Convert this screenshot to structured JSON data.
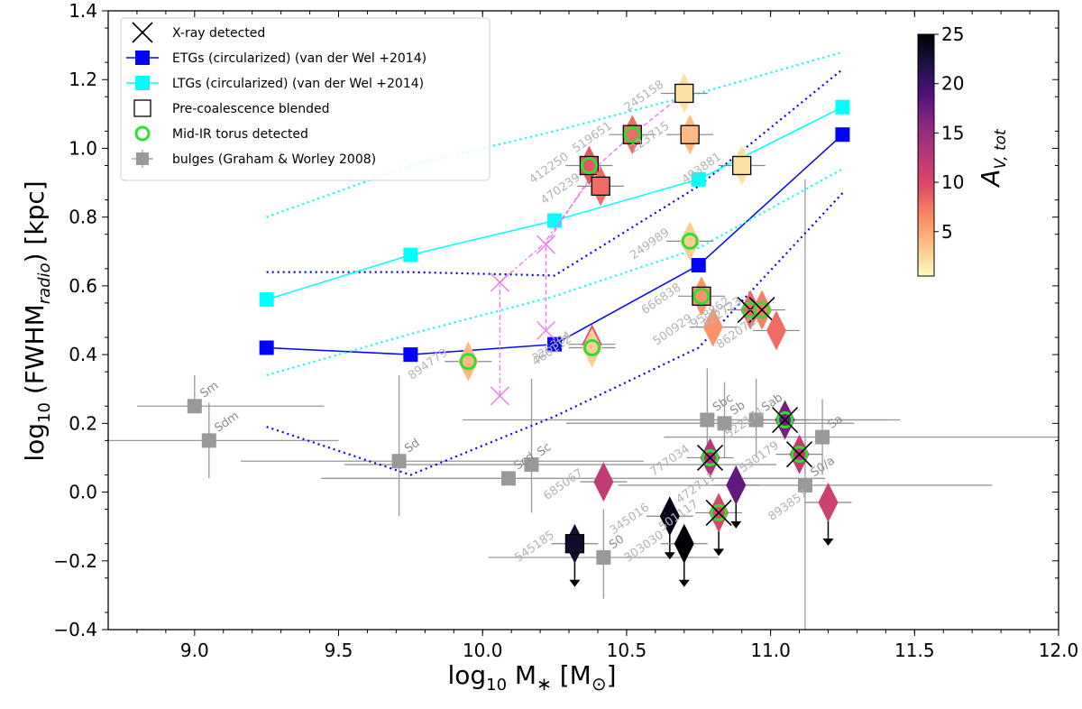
{
  "chart_data": {
    "type": "scatter",
    "title": "",
    "xlabel": "log₁₀ M∗ [M⊙]",
    "ylabel": "log₁₀ (FWHM_radio) [kpc]",
    "xlabel_parts": {
      "prefix": "log",
      "sub": "10",
      "mid": " M",
      "star": "∗",
      "bracket_open": " [M",
      "sun": "⊙",
      "bracket_close": "]"
    },
    "ylabel_parts": {
      "prefix": "log",
      "sub": "10",
      "mid": " (FWHM",
      "sub2": "radio",
      "suffix": ") [kpc]"
    },
    "xlim": [
      8.7,
      12.0
    ],
    "ylim": [
      -0.4,
      1.4
    ],
    "xticks": [
      "9.0",
      "9.5",
      "10.0",
      "10.5",
      "11.0",
      "11.5",
      "12.0"
    ],
    "xtick_values": [
      9.0,
      9.5,
      10.0,
      10.5,
      11.0,
      11.5,
      12.0
    ],
    "yticks": [
      "−0.4",
      "−0.2",
      "0.0",
      "0.2",
      "0.4",
      "0.6",
      "0.8",
      "1.0",
      "1.2",
      "1.4"
    ],
    "ytick_values": [
      -0.4,
      -0.2,
      0.0,
      0.2,
      0.4,
      0.6,
      0.8,
      1.0,
      1.2,
      1.4
    ],
    "legend": {
      "position": "top-left",
      "entries": [
        {
          "label": "X-ray detected",
          "marker": "x",
          "color": "#000000"
        },
        {
          "label": "ETGs (circularized) (van der Wel +2014)",
          "marker": "square-line",
          "color": "#0000ff"
        },
        {
          "label": "LTGs (circularized) (van der Wel +2014)",
          "marker": "square-line",
          "color": "#00ffff"
        },
        {
          "label": "Pre-coalescence blended",
          "marker": "open-square",
          "color": "#000000"
        },
        {
          "label": "Mid-IR torus detected",
          "marker": "open-circle",
          "color": "#33dd33"
        },
        {
          "label": "bulges (Graham & Worley 2008)",
          "marker": "square-errorbar",
          "color": "#999999"
        }
      ]
    },
    "colorbar": {
      "label": "A_V,tot",
      "label_main": "A",
      "label_sub": "V, tot",
      "range": [
        0.5,
        25
      ],
      "ticks": [
        "5",
        "10",
        "15",
        "20",
        "25"
      ],
      "tick_values": [
        5,
        10,
        15,
        20,
        25
      ],
      "colormap": "magma_r",
      "stops": [
        "#fcfdbf",
        "#fec287",
        "#fb8861",
        "#de4968",
        "#b73779",
        "#8c2981",
        "#51127c",
        "#1d1147",
        "#000004"
      ]
    },
    "series": [
      {
        "name": "ETGs (circularized) (van der Wel +2014)",
        "color": "#0000ff",
        "x": [
          9.25,
          9.75,
          10.25,
          10.75,
          11.25
        ],
        "y": [
          0.42,
          0.4,
          0.43,
          0.66,
          1.04
        ],
        "upper_band": [
          0.64,
          0.64,
          0.63,
          0.89,
          1.23
        ],
        "lower_band": [
          0.19,
          0.05,
          0.22,
          0.42,
          0.87
        ]
      },
      {
        "name": "LTGs (circularized) (van der Wel +2014)",
        "color": "#00ffff",
        "x": [
          9.25,
          9.75,
          10.25,
          10.75,
          11.25
        ],
        "y": [
          0.56,
          0.69,
          0.79,
          0.91,
          1.12
        ],
        "upper_band": [
          0.8,
          0.95,
          1.05,
          1.16,
          1.28
        ],
        "lower_band": [
          0.34,
          0.46,
          0.57,
          0.71,
          0.94
        ]
      }
    ],
    "bulges": [
      {
        "label": "Sm",
        "x": 9.0,
        "y": 0.25,
        "xerr": [
          0.2,
          0.45
        ],
        "yerr": [
          0.0,
          0.09
        ]
      },
      {
        "label": "Sdm",
        "x": 9.05,
        "y": 0.15,
        "xerr": [
          0.45,
          0.45
        ],
        "yerr": [
          0.11,
          0.11
        ]
      },
      {
        "label": "Sd",
        "x": 9.71,
        "y": 0.09,
        "xerr": [
          0.55,
          0.85
        ],
        "yerr": [
          0.16,
          0.25
        ]
      },
      {
        "label": "Scd",
        "x": 10.09,
        "y": 0.04,
        "xerr": [
          0.65,
          1.1
        ],
        "yerr": [
          0.0,
          0.0
        ]
      },
      {
        "label": "Sc",
        "x": 10.17,
        "y": 0.08,
        "xerr": [
          0.65,
          0.85
        ],
        "yerr": [
          0.14,
          0.25
        ]
      },
      {
        "label": "S0",
        "x": 10.42,
        "y": -0.19,
        "xerr": [
          0.4,
          0.4
        ],
        "yerr": [
          0.12,
          0.14
        ]
      },
      {
        "label": "Sbc",
        "x": 10.78,
        "y": 0.21,
        "xerr": [
          0.85,
          0.62
        ],
        "yerr": [
          0.13,
          0.15
        ]
      },
      {
        "label": "Sb",
        "x": 10.84,
        "y": 0.2,
        "xerr": [
          0.55,
          0.45
        ],
        "yerr": [
          0.1,
          0.12
        ]
      },
      {
        "label": "Sab",
        "x": 10.95,
        "y": 0.21,
        "xerr": [
          0.65,
          0.5
        ],
        "yerr": [
          0.11,
          0.12
        ]
      },
      {
        "label": "S0/a",
        "x": 11.12,
        "y": 0.02,
        "xerr": [
          0.65,
          0.65
        ],
        "yerr": [
          0.5,
          0.89
        ]
      },
      {
        "label": "Sa",
        "x": 11.18,
        "y": 0.16,
        "xerr": [
          0.55,
          0.82
        ],
        "yerr": [
          0.11,
          0.11
        ]
      }
    ],
    "galaxies": [
      {
        "id": "894779",
        "x": 9.95,
        "y": 0.38,
        "av": 4,
        "torus": true,
        "xray": false,
        "blended": false,
        "upper_limit": false
      },
      {
        "id": "326384",
        "x": 10.38,
        "y": 0.43,
        "av": 10,
        "torus": false,
        "xray": false,
        "blended": false,
        "upper_limit": false
      },
      {
        "id": "466112",
        "x": 10.38,
        "y": 0.42,
        "av": 3,
        "torus": true,
        "xray": false,
        "blended": false,
        "upper_limit": false
      },
      {
        "id": "412250",
        "x": 10.37,
        "y": 0.95,
        "av": 9,
        "torus": true,
        "xray": false,
        "blended": true,
        "upper_limit": false
      },
      {
        "id": "470239",
        "x": 10.41,
        "y": 0.89,
        "av": 8,
        "torus": false,
        "xray": false,
        "blended": true,
        "upper_limit": false
      },
      {
        "id": "519651",
        "x": 10.52,
        "y": 1.04,
        "av": 8,
        "torus": true,
        "xray": false,
        "blended": true,
        "upper_limit": false
      },
      {
        "id": "245158",
        "x": 10.7,
        "y": 1.16,
        "av": 2,
        "torus": false,
        "xray": false,
        "blended": true,
        "upper_limit": false
      },
      {
        "id": "223715",
        "x": 10.72,
        "y": 1.04,
        "av": 4,
        "torus": false,
        "xray": false,
        "blended": true,
        "upper_limit": false
      },
      {
        "id": "493881",
        "x": 10.9,
        "y": 0.95,
        "av": 2,
        "torus": false,
        "xray": false,
        "blended": true,
        "upper_limit": false
      },
      {
        "id": "249989",
        "x": 10.72,
        "y": 0.73,
        "av": 3,
        "torus": true,
        "xray": false,
        "blended": false,
        "upper_limit": false
      },
      {
        "id": "666838",
        "x": 10.76,
        "y": 0.57,
        "av": 6,
        "torus": true,
        "xray": false,
        "blended": true,
        "upper_limit": false
      },
      {
        "id": "500929",
        "x": 10.8,
        "y": 0.48,
        "av": 6,
        "torus": false,
        "xray": false,
        "blended": false,
        "upper_limit": false
      },
      {
        "id": "958862",
        "x": 10.93,
        "y": 0.53,
        "av": 8,
        "torus": true,
        "xray": true,
        "blended": false,
        "upper_limit": false
      },
      {
        "id": "422723",
        "x": 10.97,
        "y": 0.53,
        "av": 7,
        "torus": true,
        "xray": true,
        "blended": false,
        "upper_limit": false
      },
      {
        "id": "862072",
        "x": 11.02,
        "y": 0.47,
        "av": 8,
        "torus": false,
        "xray": false,
        "blended": false,
        "upper_limit": false
      },
      {
        "id": "685067",
        "x": 10.42,
        "y": 0.03,
        "av": 12,
        "torus": false,
        "xray": false,
        "blended": false,
        "upper_limit": false
      },
      {
        "id": "545185",
        "x": 10.32,
        "y": -0.15,
        "av": 23,
        "torus": false,
        "xray": false,
        "blended": true,
        "upper_limit": true
      },
      {
        "id": "777034",
        "x": 10.79,
        "y": 0.1,
        "av": 13,
        "torus": true,
        "xray": true,
        "blended": false,
        "upper_limit": false
      },
      {
        "id": "345016",
        "x": 10.65,
        "y": -0.07,
        "av": 24,
        "torus": false,
        "xray": false,
        "blended": false,
        "upper_limit": true
      },
      {
        "id": "303030",
        "x": 10.7,
        "y": -0.15,
        "av": 25,
        "torus": false,
        "xray": false,
        "blended": false,
        "upper_limit": true
      },
      {
        "id": "501117",
        "x": 10.82,
        "y": -0.06,
        "av": 10,
        "torus": true,
        "xray": true,
        "blended": false,
        "upper_limit": true
      },
      {
        "id": "472711",
        "x": 10.88,
        "y": 0.02,
        "av": 18,
        "torus": false,
        "xray": false,
        "blended": false,
        "upper_limit": true
      },
      {
        "id": "522171",
        "x": 11.05,
        "y": 0.21,
        "av": 17,
        "torus": true,
        "xray": true,
        "blended": false,
        "upper_limit": false
      },
      {
        "id": "530179",
        "x": 11.1,
        "y": 0.11,
        "av": 12,
        "torus": true,
        "xray": true,
        "blended": false,
        "upper_limit": false
      },
      {
        "id": "893857",
        "x": 11.2,
        "y": -0.03,
        "av": 11,
        "torus": false,
        "xray": false,
        "blended": false,
        "upper_limit": true
      }
    ],
    "pre_coalescence_tracks": [
      {
        "x": [
          10.06,
          10.06,
          10.21,
          10.41
        ],
        "y": [
          0.28,
          0.61,
          0.72,
          0.95
        ]
      },
      {
        "x": [
          10.22,
          10.22,
          10.4,
          10.52
        ],
        "y": [
          0.47,
          0.72,
          0.95,
          1.04
        ]
      },
      {
        "x": [
          10.52,
          10.7
        ],
        "y": [
          1.04,
          1.16
        ]
      }
    ],
    "pre_coalescence_crosses": [
      {
        "x": 10.06,
        "y": 0.28
      },
      {
        "x": 10.06,
        "y": 0.61
      },
      {
        "x": 10.22,
        "y": 0.47
      },
      {
        "x": 10.22,
        "y": 0.72
      }
    ]
  }
}
